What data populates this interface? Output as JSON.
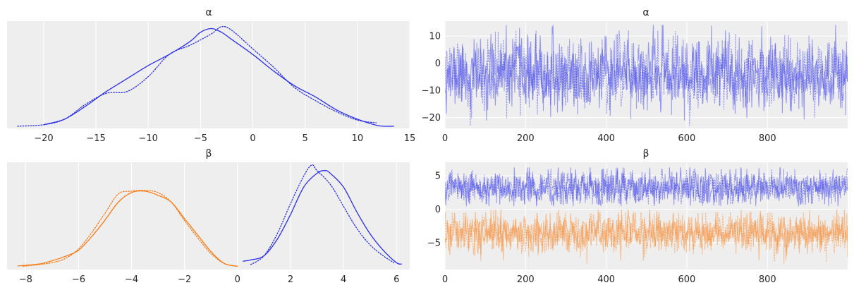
{
  "colors": {
    "background": "#ffffff",
    "panel_face": "#eeeeee",
    "grid": "#ffffff",
    "text": "#262626",
    "chain_blue": "#2a2eec",
    "chain_orange": "#fa7c17"
  },
  "chart_data": [
    {
      "panel": "alpha-density",
      "type": "line",
      "title": "α",
      "xlabel": "",
      "ylabel": "",
      "xlim": [
        -23.5,
        15
      ],
      "ylim": [
        -0.001,
        0.057
      ],
      "xticks": [
        -20,
        -15,
        -10,
        -5,
        0,
        5,
        10,
        15
      ],
      "xtick_labels": [
        "−20",
        "−15",
        "−10",
        "−5",
        "0",
        "5",
        "10",
        "15"
      ],
      "yticks": [],
      "grid": true,
      "legend": "none",
      "series": [
        {
          "color": "#2a2eec",
          "style": "solid",
          "x": [
            -20,
            -18,
            -16,
            -14,
            -12,
            -10,
            -8,
            -6,
            -5,
            -4,
            -3,
            -2,
            0,
            2,
            4,
            6,
            8,
            10,
            12,
            13.5
          ],
          "y": [
            0.001,
            0.004,
            0.011,
            0.019,
            0.026,
            0.033,
            0.039,
            0.046,
            0.051,
            0.053,
            0.051,
            0.047,
            0.039,
            0.03,
            0.022,
            0.016,
            0.009,
            0.004,
            0.0005,
            0.0002
          ]
        },
        {
          "color": "#2a2eec",
          "style": "dotted",
          "x": [
            -22.5,
            -20,
            -18,
            -16,
            -14,
            -12,
            -10,
            -8,
            -6,
            -4,
            -3,
            -2,
            0,
            2,
            4,
            6,
            8,
            10,
            11.8
          ],
          "y": [
            0.0002,
            0.001,
            0.004,
            0.012,
            0.018,
            0.019,
            0.027,
            0.039,
            0.044,
            0.05,
            0.054,
            0.052,
            0.042,
            0.032,
            0.021,
            0.014,
            0.008,
            0.0035,
            0.002
          ]
        }
      ]
    },
    {
      "panel": "alpha-trace",
      "type": "line",
      "title": "α",
      "xlabel": "",
      "ylabel": "",
      "xlim": [
        0,
        999
      ],
      "ylim": [
        -24,
        15.5
      ],
      "xticks": [
        0,
        200,
        400,
        600,
        800
      ],
      "xtick_labels": [
        "0",
        "200",
        "400",
        "600",
        "800"
      ],
      "yticks": [
        10,
        0,
        -10,
        -20
      ],
      "ytick_labels": [
        "10",
        "0",
        "−10",
        "−20"
      ],
      "grid": true,
      "legend": "none",
      "trace_params": {
        "n": 1000,
        "alpha_opacity": 0.45
      },
      "series": [
        {
          "color": "#2a2eec",
          "style": "solid",
          "mean": -4,
          "sd": 6,
          "min": -21,
          "max": 14,
          "seed": 11
        },
        {
          "color": "#2a2eec",
          "style": "dotted",
          "mean": -4,
          "sd": 6,
          "min": -23,
          "max": 12,
          "seed": 29
        }
      ]
    },
    {
      "panel": "beta-density",
      "type": "line",
      "title": "β",
      "xlabel": "",
      "ylabel": "",
      "xlim": [
        -8.7,
        6.5
      ],
      "ylim": [
        -0.01,
        0.38
      ],
      "xticks": [
        -8,
        -6,
        -4,
        -2,
        0,
        2,
        4,
        6
      ],
      "xtick_labels": [
        "−8",
        "−6",
        "−4",
        "−2",
        "0",
        "2",
        "4",
        "6"
      ],
      "yticks": [],
      "grid": true,
      "legend": "none",
      "series": [
        {
          "color": "#fa7c17",
          "style": "solid",
          "x": [
            -8.3,
            -7.5,
            -7,
            -6.5,
            -6,
            -5.5,
            -5,
            -4.5,
            -4,
            -3.5,
            -3,
            -2.5,
            -2,
            -1.5,
            -1,
            -0.5,
            0
          ],
          "y": [
            0.003,
            0.01,
            0.022,
            0.038,
            0.06,
            0.11,
            0.17,
            0.235,
            0.27,
            0.275,
            0.26,
            0.235,
            0.175,
            0.115,
            0.055,
            0.012,
            0.002
          ]
        },
        {
          "color": "#fa7c17",
          "style": "dotted",
          "x": [
            -8.1,
            -7.5,
            -7,
            -6.5,
            -6,
            -5.5,
            -5,
            -4.5,
            -4,
            -3.5,
            -3,
            -2.5,
            -2,
            -1.5,
            -1,
            -0.5,
            0
          ],
          "y": [
            0.002,
            0.008,
            0.015,
            0.03,
            0.065,
            0.125,
            0.195,
            0.265,
            0.275,
            0.278,
            0.27,
            0.235,
            0.168,
            0.105,
            0.048,
            0.012,
            0.002
          ]
        },
        {
          "color": "#2a2eec",
          "style": "solid",
          "x": [
            0.2,
            0.5,
            1,
            1.5,
            2,
            2.5,
            3,
            3.3,
            3.5,
            4,
            4.5,
            5,
            5.5,
            6,
            6.2
          ],
          "y": [
            0.02,
            0.025,
            0.04,
            0.1,
            0.19,
            0.29,
            0.34,
            0.35,
            0.34,
            0.29,
            0.2,
            0.12,
            0.06,
            0.015,
            0.01
          ]
        },
        {
          "color": "#2a2eec",
          "style": "dotted",
          "x": [
            0.5,
            1,
            1.5,
            2,
            2.5,
            2.8,
            3,
            3.5,
            4,
            4.5,
            5,
            5.5,
            5.9
          ],
          "y": [
            0.008,
            0.04,
            0.12,
            0.23,
            0.33,
            0.37,
            0.35,
            0.3,
            0.22,
            0.14,
            0.08,
            0.04,
            0.015
          ]
        }
      ]
    },
    {
      "panel": "beta-trace",
      "type": "line",
      "title": "β",
      "xlabel": "",
      "ylabel": "",
      "xlim": [
        0,
        999
      ],
      "ylim": [
        -9,
        7
      ],
      "xticks": [
        0,
        200,
        400,
        600,
        800
      ],
      "xtick_labels": [
        "0",
        "200",
        "400",
        "600",
        "800"
      ],
      "yticks": [
        5,
        0,
        -5
      ],
      "ytick_labels": [
        "5",
        "0",
        "−5"
      ],
      "grid": true,
      "legend": "none",
      "trace_params": {
        "n": 1000,
        "alpha_opacity": 0.45
      },
      "series": [
        {
          "color": "#2a2eec",
          "style": "solid",
          "mean": 3.2,
          "sd": 1.2,
          "min": 0.5,
          "max": 6.2,
          "seed": 5
        },
        {
          "color": "#2a2eec",
          "style": "dotted",
          "mean": 3.2,
          "sd": 1.2,
          "min": 0.8,
          "max": 6,
          "seed": 17
        },
        {
          "color": "#fa7c17",
          "style": "solid",
          "mean": -3.5,
          "sd": 1.4,
          "min": -7.6,
          "max": -0.1,
          "seed": 41
        },
        {
          "color": "#fa7c17",
          "style": "dotted",
          "mean": -3.5,
          "sd": 1.4,
          "min": -8.1,
          "max": -0.5,
          "seed": 53
        }
      ]
    }
  ]
}
